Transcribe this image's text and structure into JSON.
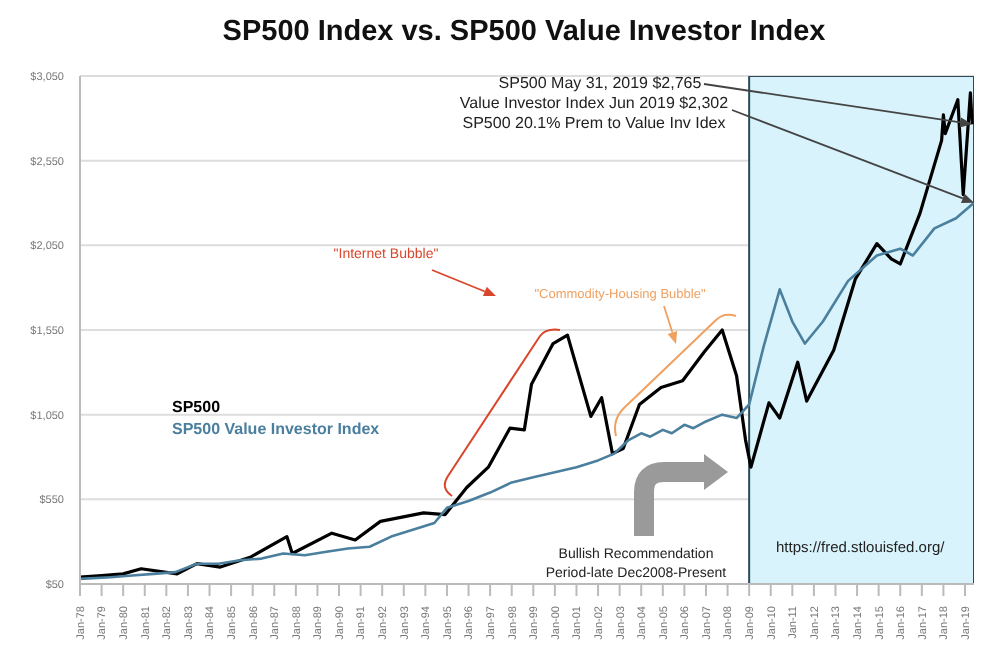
{
  "chart_data": {
    "type": "line",
    "title": "SP500 Index vs. SP500 Value Investor Index",
    "series": [
      {
        "name": "SP500",
        "color": "#000000",
        "x": [
          "1978-01",
          "1979-01",
          "1980-01",
          "1980-11",
          "1982-07",
          "1983-06",
          "1984-07",
          "1985-12",
          "1987-08",
          "1987-11",
          "1989-09",
          "1990-10",
          "1991-12",
          "1993-12",
          "1994-12",
          "1995-12",
          "1996-12",
          "1997-12",
          "1998-08",
          "1998-12",
          "1999-12",
          "2000-08",
          "2001-09",
          "2002-03",
          "2002-09",
          "2003-03",
          "2003-12",
          "2004-12",
          "2005-12",
          "2006-12",
          "2007-10",
          "2008-06",
          "2008-11",
          "2009-02",
          "2009-12",
          "2010-06",
          "2011-04",
          "2011-09",
          "2012-12",
          "2013-12",
          "2014-12",
          "2015-08",
          "2016-01",
          "2016-12",
          "2017-12",
          "2018-01",
          "2018-02",
          "2018-09",
          "2018-12",
          "2019-04",
          "2019-05"
        ],
        "values": [
          90,
          100,
          110,
          140,
          110,
          170,
          150,
          210,
          330,
          230,
          350,
          310,
          420,
          470,
          460,
          620,
          740,
          970,
          960,
          1230,
          1470,
          1520,
          1040,
          1150,
          820,
          850,
          1110,
          1210,
          1250,
          1420,
          1550,
          1280,
          900,
          740,
          1120,
          1030,
          1360,
          1130,
          1430,
          1850,
          2060,
          1970,
          1940,
          2240,
          2670,
          2820,
          2710,
          2910,
          2350,
          2950,
          2765
        ]
      },
      {
        "name": "SP500 Value Investor Index",
        "color": "#4a7f9e",
        "x": [
          "1978-01",
          "1979-06",
          "1980-06",
          "1981-06",
          "1982-06",
          "1983-06",
          "1984-06",
          "1985-06",
          "1986-06",
          "1987-06",
          "1988-06",
          "1989-06",
          "1990-06",
          "1991-06",
          "1992-06",
          "1993-06",
          "1994-06",
          "1995-01",
          "1996-01",
          "1997-01",
          "1998-01",
          "1999-01",
          "2000-01",
          "2001-01",
          "2002-01",
          "2002-10",
          "2003-06",
          "2004-01",
          "2004-06",
          "2005-01",
          "2005-06",
          "2006-01",
          "2006-06",
          "2007-01",
          "2007-10",
          "2008-06",
          "2009-01",
          "2009-09",
          "2010-06",
          "2011-01",
          "2011-08",
          "2012-06",
          "2013-08",
          "2014-12",
          "2016-01",
          "2016-08",
          "2017-08",
          "2018-08",
          "2019-06"
        ],
        "values": [
          80,
          90,
          100,
          110,
          120,
          170,
          170,
          190,
          200,
          230,
          220,
          240,
          260,
          270,
          330,
          370,
          410,
          500,
          540,
          590,
          650,
          680,
          710,
          740,
          780,
          820,
          900,
          940,
          920,
          960,
          940,
          990,
          970,
          1010,
          1050,
          1030,
          1110,
          1450,
          1790,
          1600,
          1470,
          1600,
          1840,
          1990,
          2030,
          1990,
          2150,
          2210,
          2302
        ]
      }
    ],
    "xlim": [
      "1978-01",
      "2019-06"
    ],
    "xticks": [
      {
        "value": "1978-01",
        "label": "Jan-78"
      },
      {
        "value": "1979-01",
        "label": "Jan-79"
      },
      {
        "value": "1980-01",
        "label": "Jan-80"
      },
      {
        "value": "1981-01",
        "label": "Jan-81"
      },
      {
        "value": "1982-01",
        "label": "Jan-82"
      },
      {
        "value": "1983-01",
        "label": "Jan-83"
      },
      {
        "value": "1984-01",
        "label": "Jan-84"
      },
      {
        "value": "1985-01",
        "label": "Jan-85"
      },
      {
        "value": "1986-01",
        "label": "Jan-86"
      },
      {
        "value": "1987-01",
        "label": "Jan-87"
      },
      {
        "value": "1988-01",
        "label": "Jan-88"
      },
      {
        "value": "1989-01",
        "label": "Jan-89"
      },
      {
        "value": "1990-01",
        "label": "Jan-90"
      },
      {
        "value": "1991-01",
        "label": "Jan-91"
      },
      {
        "value": "1992-01",
        "label": "Jan-92"
      },
      {
        "value": "1993-01",
        "label": "Jan-93"
      },
      {
        "value": "1994-01",
        "label": "Jan-94"
      },
      {
        "value": "1995-01",
        "label": "Jan-95"
      },
      {
        "value": "1996-01",
        "label": "Jan-96"
      },
      {
        "value": "1997-01",
        "label": "Jan-97"
      },
      {
        "value": "1998-01",
        "label": "Jan-98"
      },
      {
        "value": "1999-01",
        "label": "Jan-99"
      },
      {
        "value": "2000-01",
        "label": "Jan-00"
      },
      {
        "value": "2001-01",
        "label": "Jan-01"
      },
      {
        "value": "2002-01",
        "label": "Jan-02"
      },
      {
        "value": "2003-01",
        "label": "Jan-03"
      },
      {
        "value": "2004-01",
        "label": "Jan-04"
      },
      {
        "value": "2005-01",
        "label": "Jan-05"
      },
      {
        "value": "2006-01",
        "label": "Jan-06"
      },
      {
        "value": "2007-01",
        "label": "Jan-07"
      },
      {
        "value": "2008-01",
        "label": "Jan-08"
      },
      {
        "value": "2009-01",
        "label": "Jan-09"
      },
      {
        "value": "2010-01",
        "label": "Jan-10"
      },
      {
        "value": "2011-01",
        "label": "Jan-11"
      },
      {
        "value": "2012-01",
        "label": "Jan-12"
      },
      {
        "value": "2013-01",
        "label": "Jan-13"
      },
      {
        "value": "2014-01",
        "label": "Jan-14"
      },
      {
        "value": "2015-01",
        "label": "Jan-15"
      },
      {
        "value": "2016-01",
        "label": "Jan-16"
      },
      {
        "value": "2017-01",
        "label": "Jan-17"
      },
      {
        "value": "2018-01",
        "label": "Jan-18"
      },
      {
        "value": "2019-01",
        "label": "Jan-19"
      }
    ],
    "ylim": [
      50,
      3050
    ],
    "yticks": [
      {
        "value": 50,
        "label": "$50"
      },
      {
        "value": 550,
        "label": "$550"
      },
      {
        "value": 1050,
        "label": "$1,050"
      },
      {
        "value": 1550,
        "label": "$1,550"
      },
      {
        "value": 2050,
        "label": "$2,050"
      },
      {
        "value": 2550,
        "label": "$2,550"
      },
      {
        "value": 3050,
        "label": "$3,050"
      }
    ],
    "grid": "y",
    "legend": "left",
    "bands": [
      {
        "axis": "x",
        "from": "2009-01",
        "to": "2019-06",
        "color": "#d8f3fb"
      }
    ],
    "annotations": [
      {
        "text": "SP500 May 31, 2019  $2,765",
        "x": "2019-05",
        "y": 2765
      },
      {
        "text": "Value Investor Index Jun 2019 $2,302",
        "x": "2019-06",
        "y": 2302
      },
      "SP500 20.1% Prem to Value Inv Idex",
      "\"Internet Bubble\"",
      "\"Commodity-Housing Bubble\"",
      "Bullish Recommendation\nPeriod-late Dec2008-Present",
      "https://fred.stlouisfed.org/"
    ]
  }
}
